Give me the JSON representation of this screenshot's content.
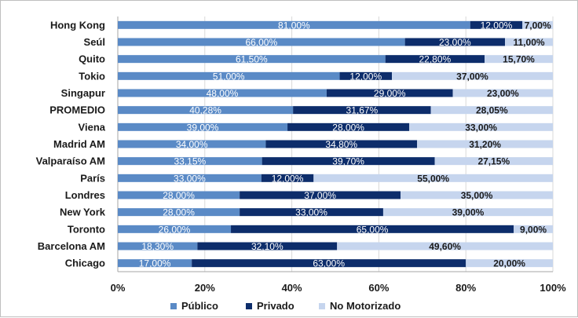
{
  "chart_data": {
    "type": "bar",
    "orientation": "horizontal",
    "stacked": "percent",
    "categories": [
      "Hong Kong",
      "Seúl",
      "Quito",
      "Tokio",
      "Singapur",
      "PROMEDIO",
      "Viena",
      "Madrid AM",
      "Valparaíso AM",
      "París",
      "Londres",
      "New York",
      "Toronto",
      "Barcelona AM",
      "Chicago"
    ],
    "series": [
      {
        "name": "Público",
        "color": "#5a8ac6",
        "values": [
          81.0,
          66.0,
          61.5,
          51.0,
          48.0,
          40.28,
          39.0,
          34.0,
          33.15,
          33.0,
          28.0,
          28.0,
          26.0,
          18.3,
          17.0
        ],
        "labels": [
          "81,00%",
          "66,00%",
          "61,50%",
          "51,00%",
          "48,00%",
          "40,28%",
          "39,00%",
          "34,00%",
          "33,15%",
          "33,00%",
          "28,00%",
          "28,00%",
          "26,00%",
          "18,30%",
          "17,00%"
        ]
      },
      {
        "name": "Privado",
        "color": "#0d2d6b",
        "values": [
          12.0,
          23.0,
          22.8,
          12.0,
          29.0,
          31.67,
          28.0,
          34.8,
          39.7,
          12.0,
          37.0,
          33.0,
          65.0,
          32.1,
          63.0
        ],
        "labels": [
          "12,00%",
          "23,00%",
          "22,80%",
          "12,00%",
          "29,00%",
          "31,67%",
          "28,00%",
          "34,80%",
          "39,70%",
          "12,00%",
          "37,00%",
          "33,00%",
          "65,00%",
          "32,10%",
          "63,00%"
        ]
      },
      {
        "name": "No Motorizado",
        "color": "#c6d5ee",
        "values": [
          7.0,
          11.0,
          15.7,
          37.0,
          23.0,
          28.05,
          33.0,
          31.2,
          27.15,
          55.0,
          35.0,
          39.0,
          9.0,
          49.6,
          20.0
        ],
        "labels": [
          "7,00%",
          "11,00%",
          "15,70%",
          "37,00%",
          "23,00%",
          "28,05%",
          "33,00%",
          "31,20%",
          "27,15%",
          "55,00%",
          "35,00%",
          "39,00%",
          "9,00%",
          "49,60%",
          "20,00%"
        ]
      }
    ],
    "xticks": [
      "0%",
      "20%",
      "40%",
      "60%",
      "80%",
      "100%"
    ],
    "xlim": [
      0,
      100
    ],
    "grid": "vertical",
    "legend_position": "bottom",
    "label_colors": [
      "#ffffff",
      "#ffffff",
      "#1a1a1a"
    ]
  }
}
